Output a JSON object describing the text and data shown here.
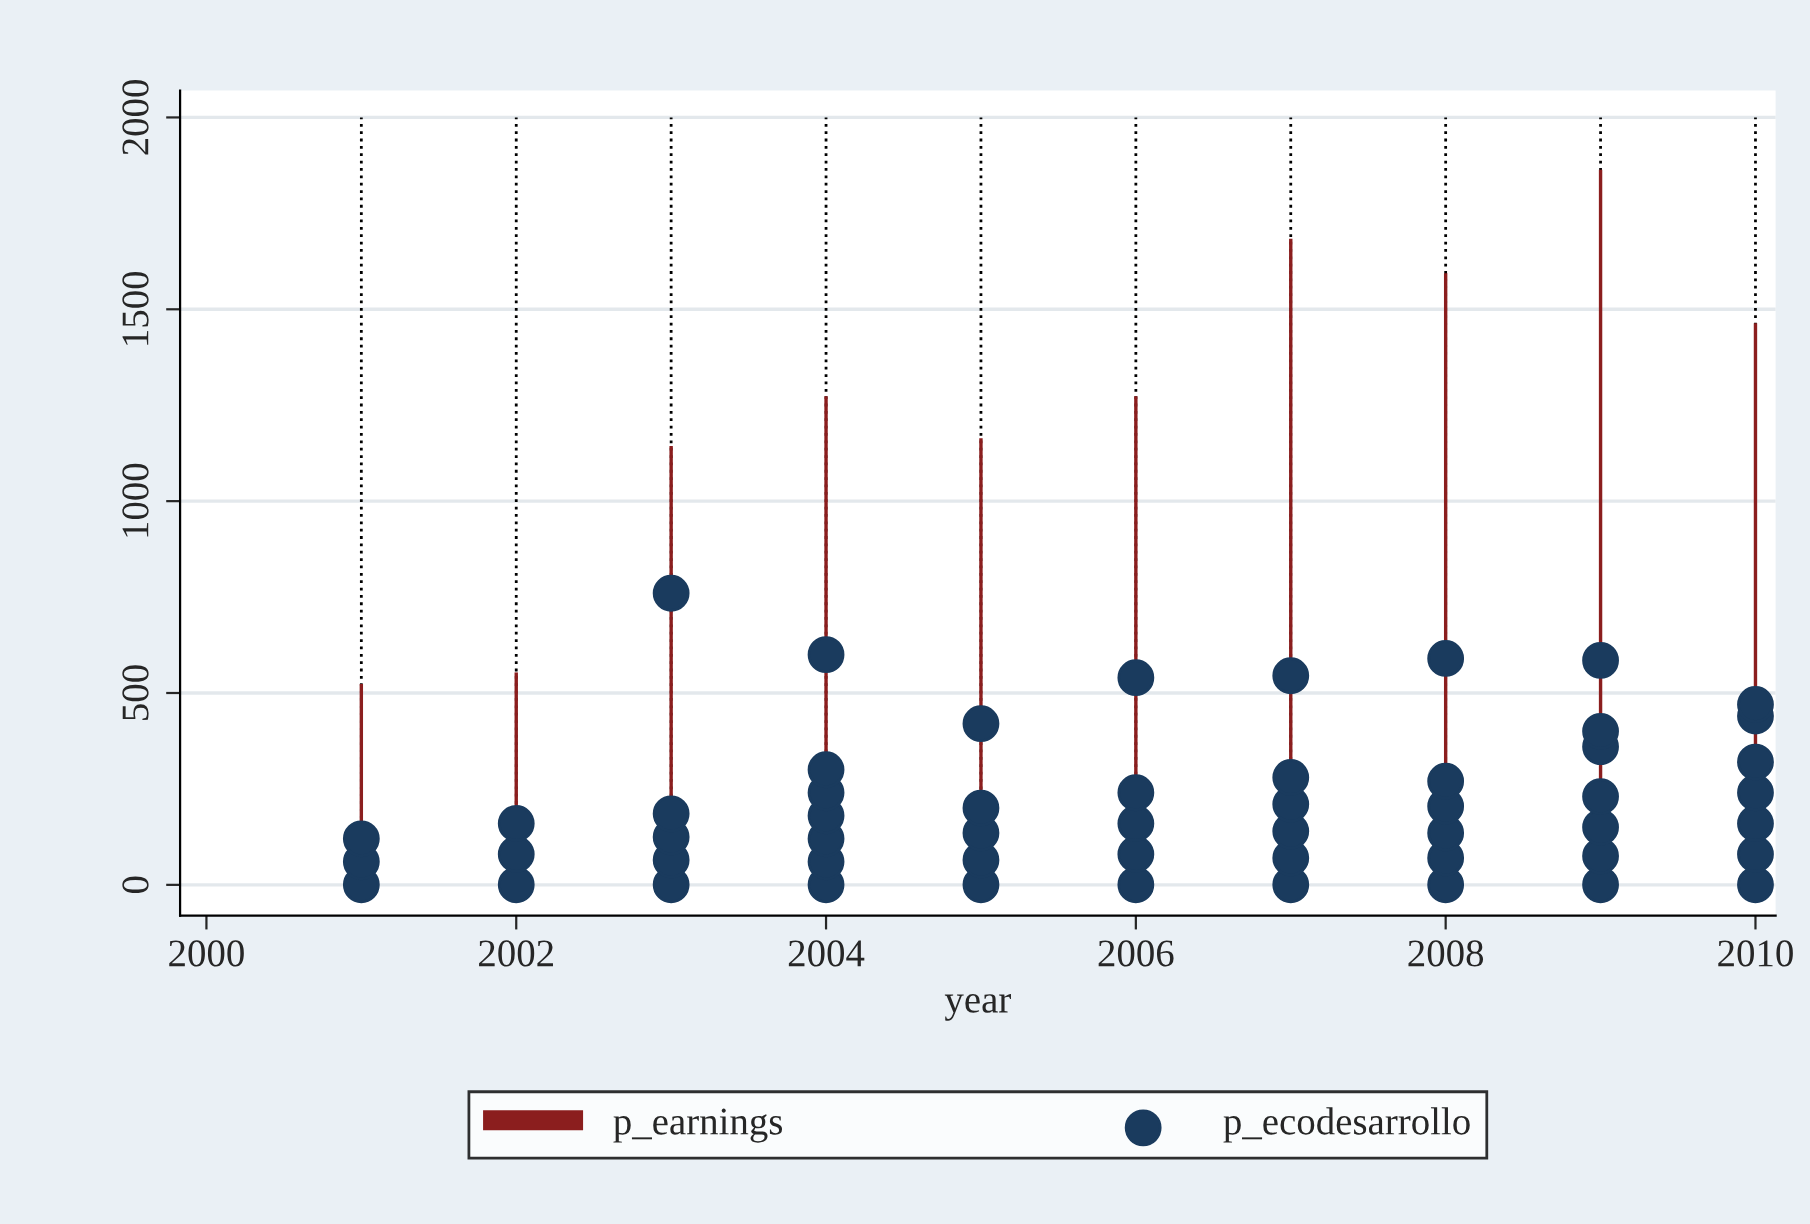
{
  "chart_data": {
    "type": "scatter",
    "xlabel": "year",
    "xlim": [
      1999.83,
      2010.13
    ],
    "xticks": [
      2000,
      2002,
      2004,
      2006,
      2008,
      2010
    ],
    "ylim": [
      -80,
      2070
    ],
    "yticks": [
      0,
      500,
      1000,
      1500,
      2000
    ],
    "grid": "y",
    "legend": "bottom",
    "marker": "circle",
    "ref_lines": [
      {
        "axis": "x",
        "value": 2001,
        "color": "#000000",
        "line_style": "dotted"
      },
      {
        "axis": "x",
        "value": 2002,
        "color": "#000000",
        "line_style": "dotted"
      },
      {
        "axis": "x",
        "value": 2003,
        "color": "#000000",
        "line_style": "dotted"
      },
      {
        "axis": "x",
        "value": 2004,
        "color": "#000000",
        "line_style": "dotted"
      },
      {
        "axis": "x",
        "value": 2005,
        "color": "#000000",
        "line_style": "dotted"
      },
      {
        "axis": "x",
        "value": 2006,
        "color": "#000000",
        "line_style": "dotted"
      },
      {
        "axis": "x",
        "value": 2007,
        "color": "#000000",
        "line_style": "dotted"
      },
      {
        "axis": "x",
        "value": 2008,
        "color": "#000000",
        "line_style": "dotted"
      },
      {
        "axis": "x",
        "value": 2009,
        "color": "#000000",
        "line_style": "dotted"
      },
      {
        "axis": "x",
        "value": 2010,
        "color": "#000000",
        "line_style": "dotted"
      }
    ],
    "series": [
      {
        "name": "p_earnings",
        "type": "bar",
        "color": "#8b1e1e",
        "x": [
          2001,
          2002,
          2003,
          2004,
          2005,
          2006,
          2007,
          2008,
          2009,
          2010
        ],
        "values": [
          520,
          550,
          1140,
          1270,
          1160,
          1270,
          1680,
          1590,
          1860,
          1460
        ]
      },
      {
        "name": "p_ecodesarrollo",
        "color": "#1a3b5e",
        "x": [
          2001,
          2001,
          2001,
          2002,
          2002,
          2002,
          2003,
          2003,
          2003,
          2003,
          2003,
          2004,
          2004,
          2004,
          2004,
          2004,
          2004,
          2004,
          2005,
          2005,
          2005,
          2005,
          2005,
          2006,
          2006,
          2006,
          2006,
          2006,
          2007,
          2007,
          2007,
          2007,
          2007,
          2007,
          2008,
          2008,
          2008,
          2008,
          2008,
          2008,
          2009,
          2009,
          2009,
          2009,
          2009,
          2009,
          2009,
          2010,
          2010,
          2010,
          2010,
          2010,
          2010,
          2010
        ],
        "values": [
          0,
          60,
          120,
          0,
          80,
          160,
          0,
          65,
          125,
          185,
          760,
          0,
          60,
          120,
          180,
          240,
          300,
          600,
          0,
          65,
          135,
          200,
          420,
          0,
          80,
          160,
          240,
          540,
          0,
          70,
          140,
          210,
          280,
          545,
          0,
          70,
          135,
          205,
          270,
          590,
          0,
          75,
          150,
          230,
          360,
          400,
          585,
          0,
          80,
          160,
          240,
          320,
          440,
          470
        ]
      }
    ]
  }
}
